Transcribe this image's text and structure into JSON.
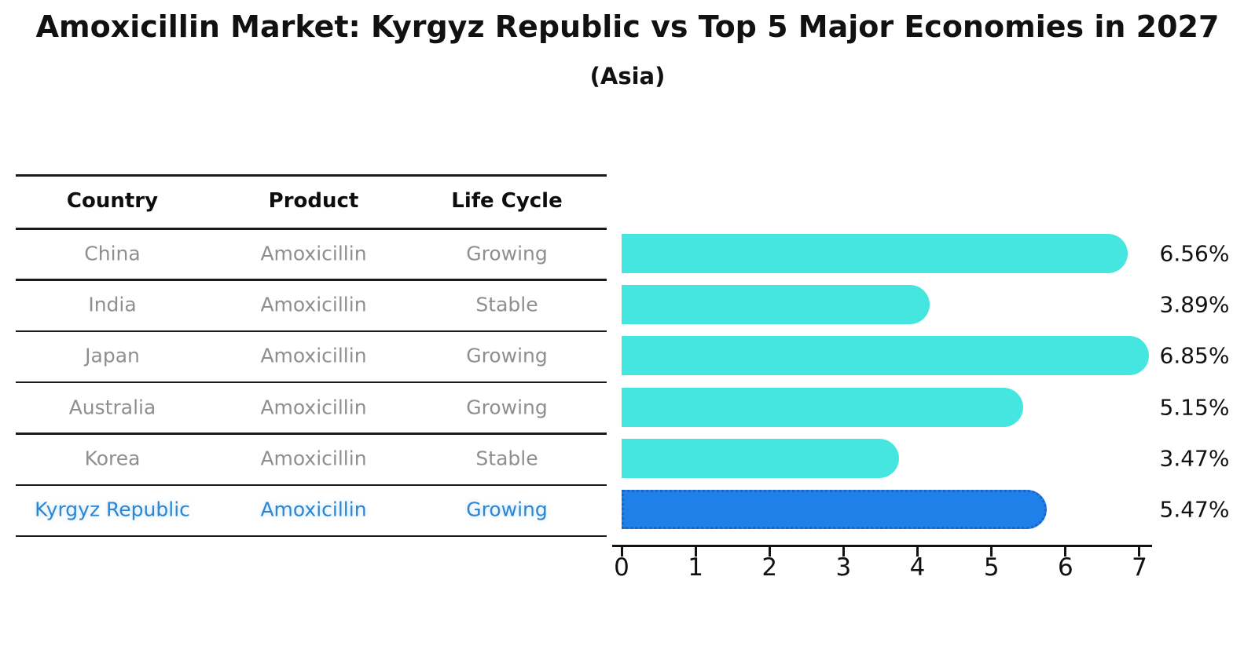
{
  "header": {
    "title": "Amoxicillin Market: Kyrgyz Republic vs Top 5 Major Economies in 2027",
    "subtitle": "(Asia)"
  },
  "table": {
    "headers": [
      "Country",
      "Product",
      "Life Cycle"
    ],
    "rows": [
      {
        "country": "China",
        "product": "Amoxicillin",
        "life_cycle": "Growing",
        "highlight": false
      },
      {
        "country": "India",
        "product": "Amoxicillin",
        "life_cycle": "Stable",
        "highlight": false
      },
      {
        "country": "Japan",
        "product": "Amoxicillin",
        "life_cycle": "Growing",
        "highlight": false
      },
      {
        "country": "Australia",
        "product": "Amoxicillin",
        "life_cycle": "Growing",
        "highlight": false
      },
      {
        "country": "Korea",
        "product": "Amoxicillin",
        "life_cycle": "Stable",
        "highlight": false
      },
      {
        "country": "Kyrgyz Republic",
        "product": "Amoxicillin",
        "life_cycle": "Growing",
        "highlight": true
      }
    ]
  },
  "chart_data": {
    "type": "bar",
    "orientation": "horizontal",
    "title": "Amoxicillin Market: Kyrgyz Republic vs Top 5 Major Economies in 2027",
    "subtitle": "(Asia)",
    "categories": [
      "China",
      "India",
      "Japan",
      "Australia",
      "Korea",
      "Kyrgyz Republic"
    ],
    "values": [
      6.56,
      3.89,
      6.85,
      5.15,
      3.47,
      5.47
    ],
    "value_labels": [
      "6.56%",
      "3.89%",
      "6.85%",
      "5.15%",
      "3.47%",
      "5.47%"
    ],
    "xlabel": "",
    "ylabel": "",
    "xlim": [
      0,
      7
    ],
    "x_ticks": [
      "0",
      "1",
      "2",
      "3",
      "4",
      "5",
      "6",
      "7"
    ],
    "grid": false,
    "legend": null,
    "highlight_index": 5,
    "bar_color": "#46e6e0",
    "highlight_bar_color": "#1e80e8",
    "highlight_border_color": "#1a63c9",
    "highlight_text_color": "#2e86d1",
    "text_color": "#111111",
    "muted_text_color": "#8f8f8f"
  }
}
